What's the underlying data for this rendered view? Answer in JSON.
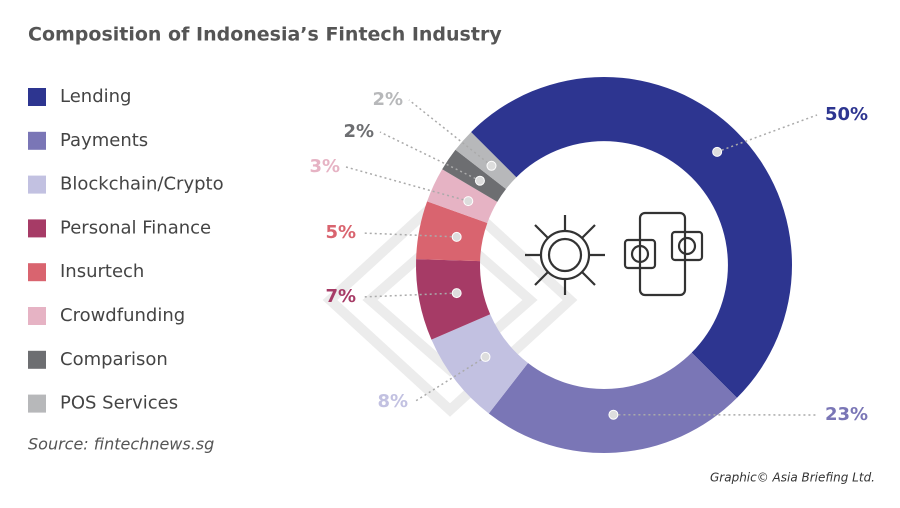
{
  "chart_data": {
    "type": "donut",
    "title": "Composition of Indonesia’s Fintech Industry",
    "categories": [
      "Lending",
      "Payments",
      "Blockchain/Crypto",
      "Personal Finance",
      "Insurtech",
      "Crowdfunding",
      "Comparison",
      "POS Services"
    ],
    "values": [
      50,
      23,
      8,
      7,
      5,
      3,
      2,
      2
    ],
    "value_labels": [
      "50%",
      "23%",
      "8%",
      "7%",
      "5%",
      "3%",
      "2%",
      "2%"
    ],
    "colors": [
      "#2d3590",
      "#7a76b6",
      "#c2c1e1",
      "#a63b66",
      "#d9646f",
      "#e6b3c4",
      "#6d6e71",
      "#b7b8ba"
    ],
    "legend": "left",
    "source": "Source: fintechnews.sg",
    "credit": "Graphic© Asia Briefing Ltd."
  }
}
